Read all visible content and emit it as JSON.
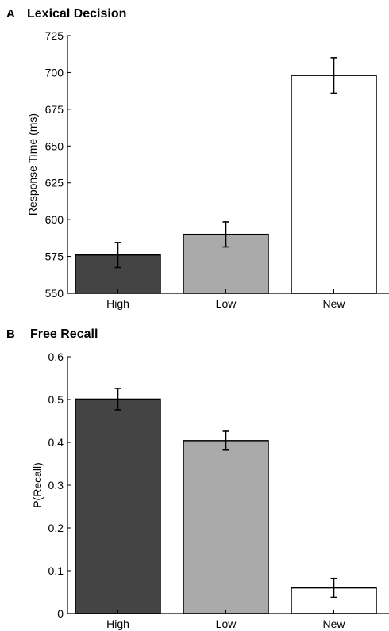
{
  "chart_data": [
    {
      "type": "bar",
      "panel_letter": "A",
      "title": "Lexical Decision",
      "xlabel": "",
      "ylabel": "Response Time (ms)",
      "ylim": [
        550,
        725
      ],
      "yticks": [
        "550",
        "575",
        "600",
        "625",
        "650",
        "675",
        "700",
        "725"
      ],
      "categories": [
        "High",
        "Low",
        "New"
      ],
      "values": [
        576,
        590,
        698
      ],
      "errors": [
        8.5,
        8.5,
        12
      ],
      "colors": [
        "#444444",
        "#aaaaaa",
        "#ffffff"
      ],
      "grid": false
    },
    {
      "type": "bar",
      "panel_letter": "B",
      "title": "Free Recall",
      "xlabel": "",
      "ylabel": "P(Recall)",
      "ylim": [
        0,
        0.6
      ],
      "yticks": [
        "0",
        "0.1",
        "0.2",
        "0.3",
        "0.4",
        "0.5",
        "0.6"
      ],
      "categories": [
        "High",
        "Low",
        "New"
      ],
      "values": [
        0.501,
        0.404,
        0.06
      ],
      "errors": [
        0.025,
        0.022,
        0.022
      ],
      "colors": [
        "#444444",
        "#aaaaaa",
        "#ffffff"
      ],
      "grid": false
    }
  ]
}
